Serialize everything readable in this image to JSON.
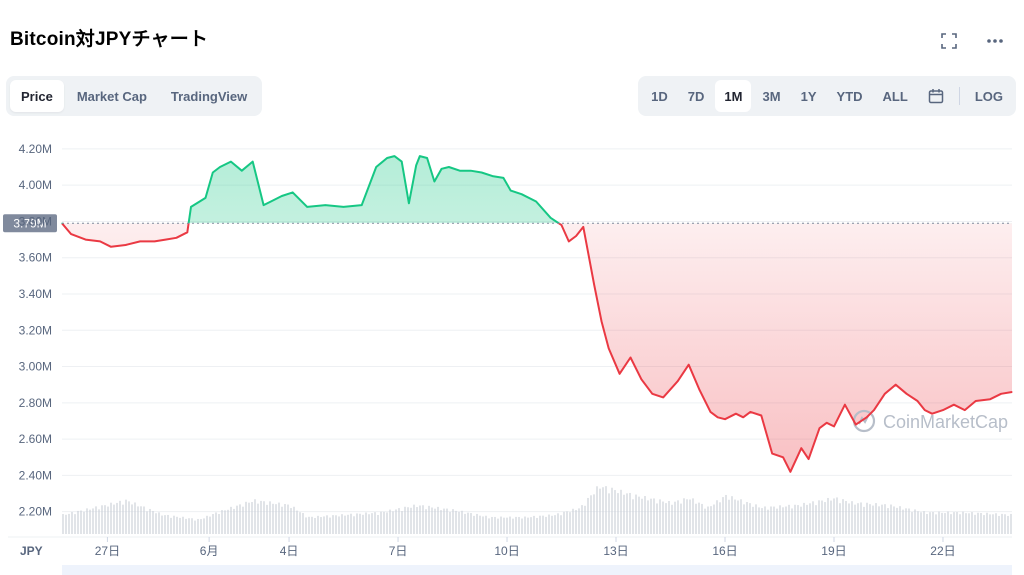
{
  "header": {
    "title": "Bitcoin対JPYチャート",
    "icons": [
      "fullscreen-icon",
      "more-icon"
    ]
  },
  "tabs": [
    {
      "label": "Price",
      "active": true
    },
    {
      "label": "Market Cap",
      "active": false
    },
    {
      "label": "TradingView",
      "active": false
    }
  ],
  "ranges": [
    {
      "label": "1D",
      "active": false
    },
    {
      "label": "7D",
      "active": false
    },
    {
      "label": "1M",
      "active": true
    },
    {
      "label": "3M",
      "active": false
    },
    {
      "label": "1Y",
      "active": false
    },
    {
      "label": "YTD",
      "active": false
    },
    {
      "label": "ALL",
      "active": false
    }
  ],
  "log_label": "LOG",
  "colors": {
    "up": "#16c784",
    "down": "#ea3943",
    "grid": "#eef0f3",
    "label_bg": "#808a9d",
    "volume": "#c9cdd6"
  },
  "chart_data": {
    "type": "area",
    "currency_label": "JPY",
    "reference_value": 3.79,
    "reference_label": "3.79M",
    "y_ticks": [
      "4.20M",
      "4.00M",
      "3.80M",
      "3.60M",
      "3.40M",
      "3.20M",
      "3.00M",
      "2.80M",
      "2.60M",
      "2.40M",
      "2.20M"
    ],
    "y_tick_values": [
      4.2,
      4.0,
      3.8,
      3.6,
      3.4,
      3.2,
      3.0,
      2.8,
      2.6,
      2.4,
      2.2
    ],
    "ylim": [
      2.11,
      4.26
    ],
    "x_ticks": [
      {
        "label": "27日",
        "x": 0.5
      },
      {
        "label": "6月",
        "x": 3.3
      },
      {
        "label": "4日",
        "x": 5.5
      },
      {
        "label": "7日",
        "x": 8.5
      },
      {
        "label": "10日",
        "x": 11.5
      },
      {
        "label": "13日",
        "x": 14.5
      },
      {
        "label": "16日",
        "x": 17.5
      },
      {
        "label": "19日",
        "x": 20.5
      },
      {
        "label": "22日",
        "x": 23.5
      }
    ],
    "xlim": [
      -0.75,
      25.4
    ],
    "series": [
      {
        "unit": "M JPY",
        "x": [
          -0.75,
          -0.5,
          -0.1,
          0.3,
          0.6,
          1.0,
          1.4,
          1.8,
          2.1,
          2.4,
          2.7,
          2.8,
          3.2,
          3.4,
          3.6,
          3.9,
          4.2,
          4.5,
          4.8,
          5.0,
          5.3,
          5.6,
          6.0,
          6.5,
          7.0,
          7.5,
          7.9,
          8.2,
          8.4,
          8.6,
          8.8,
          9.0,
          9.1,
          9.3,
          9.5,
          9.7,
          9.9,
          10.2,
          10.5,
          10.8,
          11.1,
          11.4,
          11.6,
          11.9,
          12.3,
          12.7,
          13.0,
          13.2,
          13.4,
          13.6,
          13.9,
          14.1,
          14.3,
          14.6,
          14.9,
          15.2,
          15.5,
          15.8,
          16.2,
          16.5,
          16.8,
          17.1,
          17.3,
          17.5,
          17.8,
          18.0,
          18.2,
          18.5,
          18.8,
          19.1,
          19.3,
          19.6,
          19.8,
          20.1,
          20.3,
          20.5,
          20.8,
          21.1,
          21.4,
          21.6,
          21.9,
          22.2,
          22.5,
          22.8,
          23.0,
          23.2,
          23.5,
          23.8,
          24.1,
          24.4,
          24.8,
          25.1,
          25.4
        ],
        "y": [
          3.79,
          3.73,
          3.7,
          3.69,
          3.66,
          3.67,
          3.69,
          3.69,
          3.7,
          3.71,
          3.74,
          3.88,
          3.93,
          4.07,
          4.1,
          4.13,
          4.08,
          4.13,
          3.89,
          3.91,
          3.94,
          3.96,
          3.88,
          3.89,
          3.88,
          3.89,
          4.1,
          4.15,
          4.16,
          4.13,
          3.9,
          4.11,
          4.16,
          4.15,
          4.02,
          4.09,
          4.1,
          4.08,
          4.08,
          4.07,
          4.05,
          4.04,
          3.97,
          3.95,
          3.91,
          3.82,
          3.78,
          3.69,
          3.72,
          3.77,
          3.45,
          3.25,
          3.1,
          2.96,
          3.05,
          2.93,
          2.85,
          2.83,
          2.92,
          3.01,
          2.87,
          2.75,
          2.72,
          2.71,
          2.74,
          2.72,
          2.75,
          2.73,
          2.52,
          2.5,
          2.42,
          2.55,
          2.49,
          2.66,
          2.69,
          2.67,
          2.79,
          2.68,
          2.72,
          2.76,
          2.85,
          2.9,
          2.85,
          2.81,
          2.76,
          2.74,
          2.76,
          2.79,
          2.76,
          2.81,
          2.82,
          2.85,
          2.86
        ]
      }
    ],
    "volume": {
      "x": [
        -0.75,
        1.0,
        2.0,
        3.0,
        3.5,
        4.5,
        5.5,
        6.0,
        7.0,
        8.0,
        9.0,
        10.0,
        11.0,
        12.0,
        12.8,
        13.5,
        14.0,
        14.3,
        15.0,
        16.0,
        16.5,
        17.0,
        17.5,
        18.5,
        19.5,
        20.5,
        21.0,
        22.0,
        23.0,
        24.0,
        25.4
      ],
      "y": [
        0.4,
        0.7,
        0.4,
        0.3,
        0.45,
        0.7,
        0.6,
        0.35,
        0.4,
        0.45,
        0.6,
        0.5,
        0.35,
        0.35,
        0.4,
        0.55,
        1.0,
        0.95,
        0.8,
        0.65,
        0.75,
        0.55,
        0.8,
        0.55,
        0.6,
        0.75,
        0.65,
        0.6,
        0.45,
        0.45,
        0.4
      ]
    }
  },
  "watermark": "CoinMarketCap"
}
